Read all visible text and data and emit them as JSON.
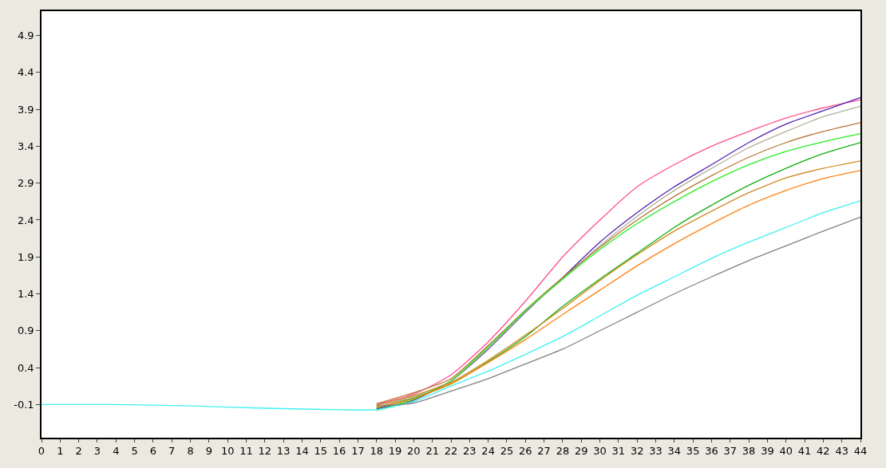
{
  "chart_data": {
    "type": "line",
    "x": [
      0,
      4,
      8,
      12,
      16,
      18,
      20,
      22,
      24,
      26,
      28,
      30,
      32,
      34,
      36,
      38,
      40,
      42,
      44
    ],
    "xlim": [
      0,
      44
    ],
    "xticks": [
      0,
      1,
      2,
      3,
      4,
      5,
      6,
      7,
      8,
      9,
      10,
      11,
      12,
      13,
      14,
      15,
      16,
      17,
      18,
      19,
      20,
      21,
      22,
      23,
      24,
      25,
      26,
      27,
      28,
      29,
      30,
      31,
      32,
      33,
      34,
      35,
      36,
      37,
      38,
      39,
      40,
      41,
      42,
      43,
      44
    ],
    "ylim": [
      -0.55,
      5.23
    ],
    "yticks": [
      -0.1,
      0.4,
      0.9,
      1.4,
      1.9,
      2.4,
      2.9,
      3.4,
      3.9,
      4.4,
      4.9
    ],
    "marker": "none",
    "line_style": "solid",
    "series": [
      {
        "color": "#ff4f8f",
        "values": [
          null,
          null,
          null,
          null,
          null,
          -0.1,
          0.04,
          0.3,
          0.75,
          1.3,
          1.9,
          2.4,
          2.85,
          3.15,
          3.4,
          3.6,
          3.78,
          3.92,
          4.03
        ]
      },
      {
        "color": "#5020b0",
        "values": [
          null,
          null,
          null,
          null,
          null,
          -0.16,
          -0.04,
          0.22,
          0.65,
          1.15,
          1.62,
          2.1,
          2.5,
          2.85,
          3.15,
          3.45,
          3.7,
          3.88,
          4.06
        ]
      },
      {
        "color": "#b0b098",
        "values": [
          null,
          null,
          null,
          null,
          null,
          -0.13,
          0.01,
          0.22,
          0.66,
          1.16,
          1.6,
          2.05,
          2.45,
          2.8,
          3.1,
          3.38,
          3.6,
          3.8,
          3.94
        ]
      },
      {
        "color": "#b87333",
        "values": [
          null,
          null,
          null,
          null,
          null,
          -0.09,
          0.06,
          0.25,
          0.7,
          1.18,
          1.62,
          2.03,
          2.4,
          2.72,
          3.0,
          3.25,
          3.45,
          3.6,
          3.72
        ]
      },
      {
        "color": "#22ee22",
        "values": [
          null,
          null,
          null,
          null,
          null,
          -0.18,
          -0.03,
          0.22,
          0.68,
          1.17,
          1.6,
          2.0,
          2.35,
          2.65,
          2.92,
          3.15,
          3.33,
          3.46,
          3.57
        ]
      },
      {
        "color": "#10b010",
        "values": [
          null,
          null,
          null,
          null,
          null,
          -0.15,
          -0.01,
          0.18,
          0.48,
          0.82,
          1.23,
          1.6,
          1.95,
          2.3,
          2.6,
          2.87,
          3.1,
          3.3,
          3.45
        ]
      },
      {
        "color": "#d08a20",
        "values": [
          null,
          null,
          null,
          null,
          null,
          -0.11,
          0.02,
          0.2,
          0.5,
          0.84,
          1.2,
          1.58,
          1.93,
          2.25,
          2.52,
          2.77,
          2.97,
          3.1,
          3.2
        ]
      },
      {
        "color": "#ff8010",
        "values": [
          null,
          null,
          null,
          null,
          null,
          -0.14,
          -0.02,
          0.18,
          0.47,
          0.78,
          1.12,
          1.45,
          1.78,
          2.08,
          2.35,
          2.6,
          2.8,
          2.96,
          3.07
        ]
      },
      {
        "color": "#40f0f0",
        "values": [
          -0.1,
          -0.1,
          -0.12,
          -0.15,
          -0.17,
          -0.17,
          -0.06,
          0.15,
          0.35,
          0.58,
          0.82,
          1.1,
          1.38,
          1.63,
          1.88,
          2.1,
          2.3,
          2.5,
          2.66
        ]
      },
      {
        "color": "#808080",
        "values": [
          null,
          null,
          null,
          null,
          null,
          -0.12,
          -0.08,
          0.08,
          0.25,
          0.45,
          0.65,
          0.9,
          1.15,
          1.4,
          1.63,
          1.85,
          2.05,
          2.25,
          2.44
        ]
      }
    ]
  }
}
